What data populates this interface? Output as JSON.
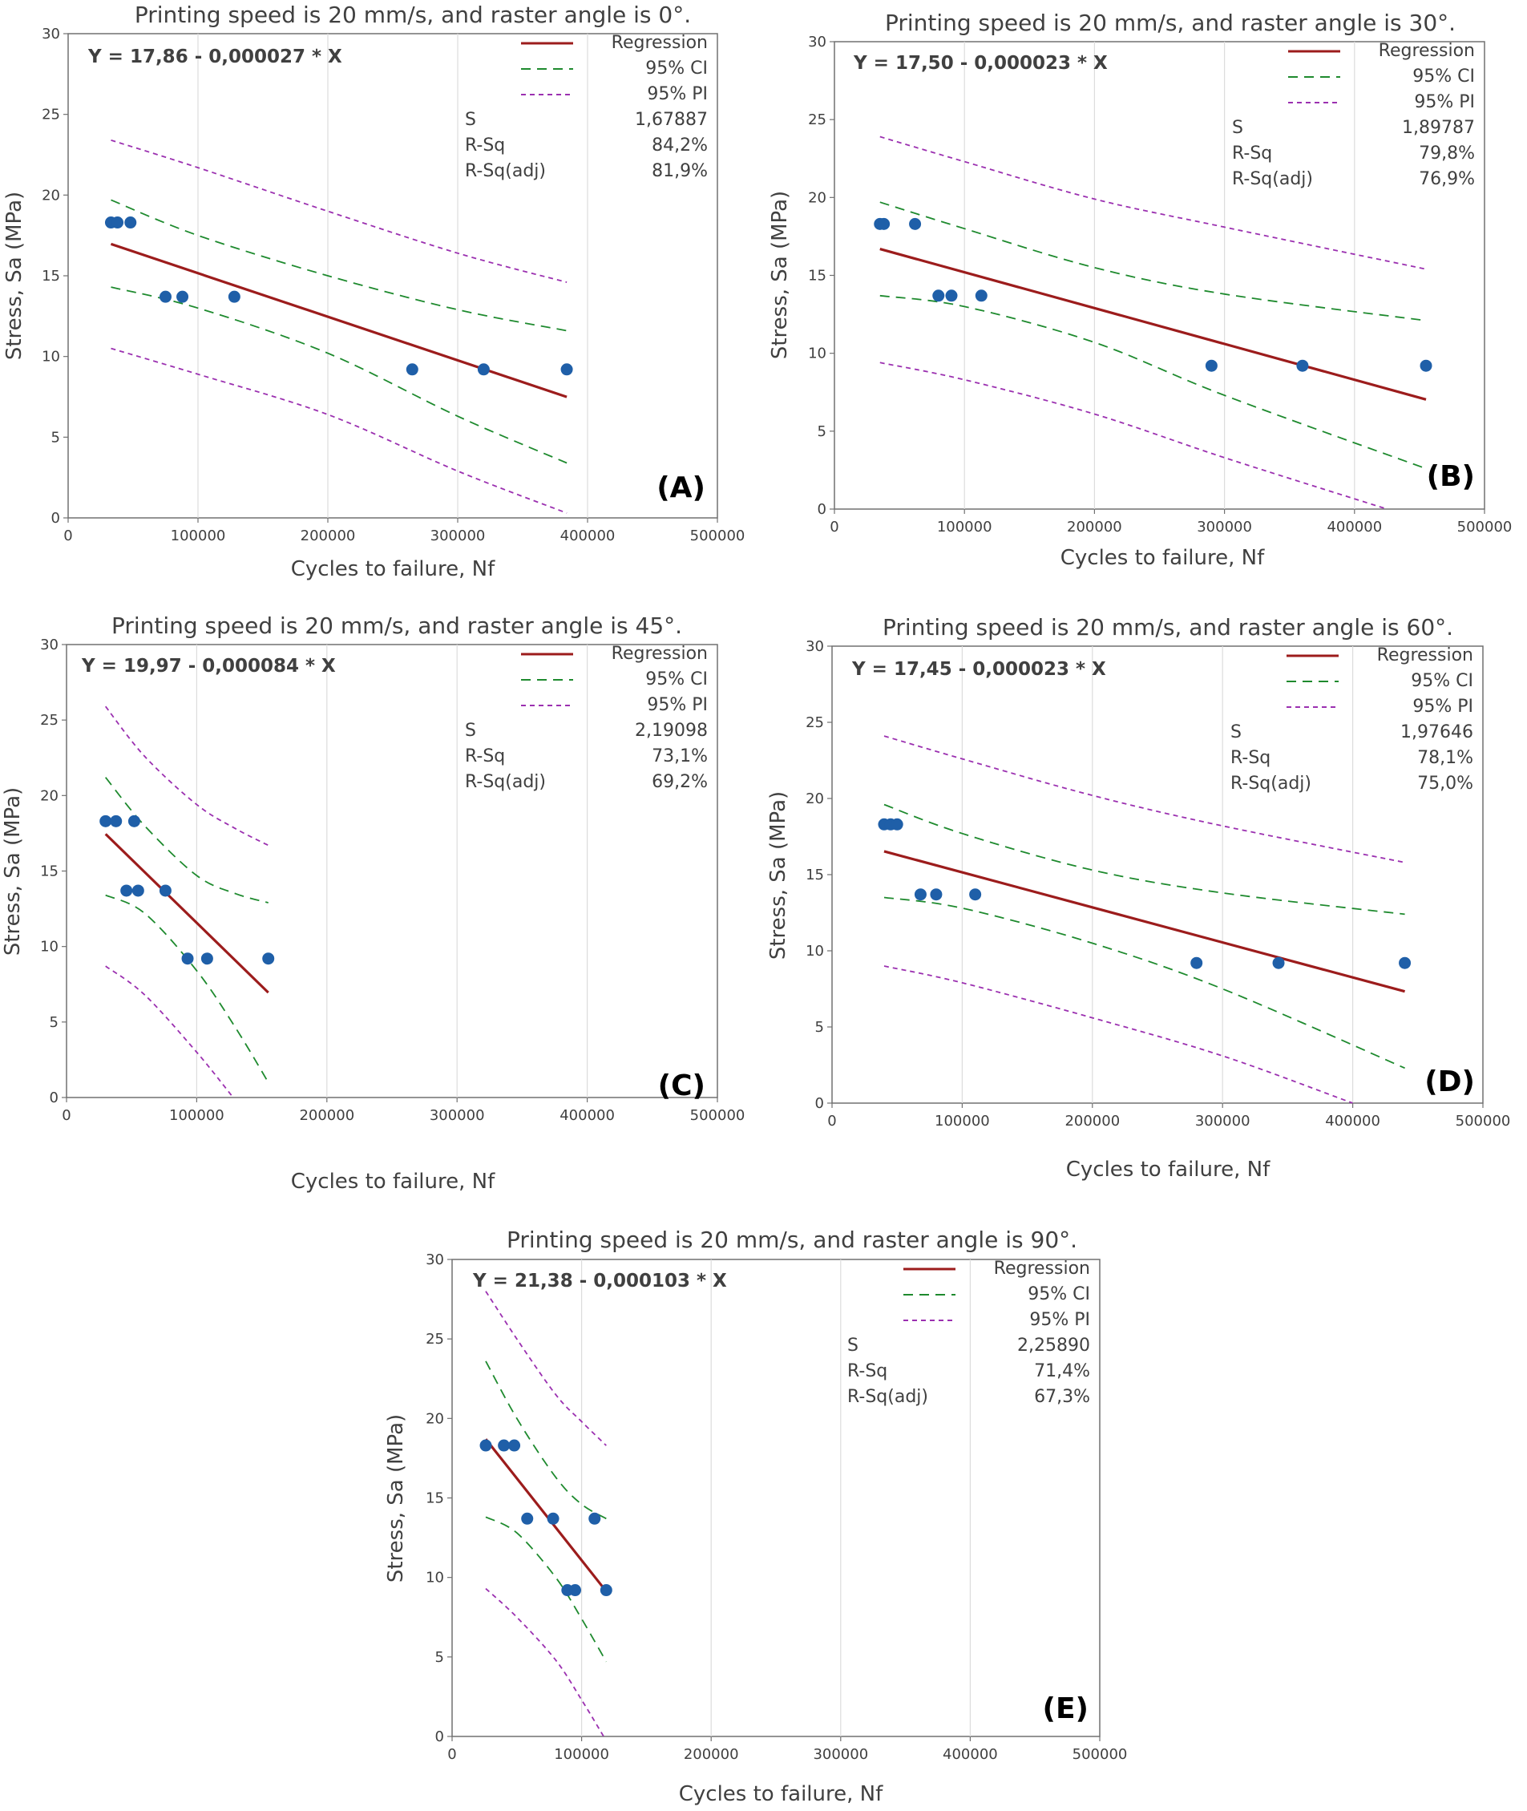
{
  "chart_data": [
    {
      "type": "scatter",
      "title": "Printing speed is 20 mm/s, and raster angle is 0°.",
      "xlabel": "Cycles to failure, Nf",
      "ylabel": "Stress, Sa (MPa)",
      "xlim": [
        0,
        500000
      ],
      "ylim": [
        0,
        30
      ],
      "xticks": [
        0,
        100000,
        200000,
        300000,
        400000,
        500000
      ],
      "yticks": [
        0,
        5,
        10,
        15,
        20,
        25,
        30
      ],
      "equation": "Y = 17,86 - 0,000027 * X",
      "intercept": 17.86,
      "slope": -2.7e-05,
      "x_range": [
        33000,
        384000
      ],
      "points": [
        [
          33000,
          18.3
        ],
        [
          38000,
          18.3
        ],
        [
          48000,
          18.3
        ],
        [
          75000,
          13.7
        ],
        [
          88000,
          13.7
        ],
        [
          128000,
          13.7
        ],
        [
          265000,
          9.2
        ],
        [
          320000,
          9.2
        ],
        [
          384000,
          9.2
        ]
      ],
      "ci_upper": [
        [
          33000,
          19.7
        ],
        [
          100000,
          17.5
        ],
        [
          200000,
          15.0
        ],
        [
          300000,
          12.9
        ],
        [
          384000,
          11.6
        ]
      ],
      "ci_lower": [
        [
          33000,
          14.3
        ],
        [
          100000,
          13.0
        ],
        [
          200000,
          10.2
        ],
        [
          300000,
          6.3
        ],
        [
          384000,
          3.4
        ]
      ],
      "pi_upper": [
        [
          33000,
          23.4
        ],
        [
          100000,
          21.7
        ],
        [
          200000,
          19.0
        ],
        [
          300000,
          16.4
        ],
        [
          384000,
          14.6
        ]
      ],
      "pi_lower": [
        [
          33000,
          10.5
        ],
        [
          100000,
          8.9
        ],
        [
          200000,
          6.4
        ],
        [
          300000,
          2.9
        ],
        [
          384000,
          0.3
        ]
      ],
      "legend": {
        "regression": "Regression",
        "ci": "95% CI",
        "pi": "95% PI"
      },
      "stats": [
        {
          "label": "S",
          "value": "1,67887"
        },
        {
          "label": "R-Sq",
          "value": "84,2%"
        },
        {
          "label": "R-Sq(adj)",
          "value": "81,9%"
        }
      ],
      "panel_label": "(A)"
    },
    {
      "type": "scatter",
      "title": "Printing speed is 20 mm/s, and raster angle is 30°.",
      "xlabel": "Cycles to failure, Nf",
      "ylabel": "Stress, Sa (MPa)",
      "xlim": [
        0,
        500000
      ],
      "ylim": [
        0,
        30
      ],
      "xticks": [
        0,
        100000,
        200000,
        300000,
        400000,
        500000
      ],
      "yticks": [
        0,
        5,
        10,
        15,
        20,
        25,
        30
      ],
      "equation": "Y = 17,50 - 0,000023 * X",
      "intercept": 17.5,
      "slope": -2.3e-05,
      "x_range": [
        35000,
        455000
      ],
      "points": [
        [
          35000,
          18.3
        ],
        [
          38000,
          18.3
        ],
        [
          62000,
          18.3
        ],
        [
          80000,
          13.7
        ],
        [
          90000,
          13.7
        ],
        [
          113000,
          13.7
        ],
        [
          290000,
          9.2
        ],
        [
          360000,
          9.2
        ],
        [
          455000,
          9.2
        ]
      ],
      "ci_upper": [
        [
          35000,
          19.7
        ],
        [
          100000,
          18.0
        ],
        [
          200000,
          15.5
        ],
        [
          300000,
          13.8
        ],
        [
          455000,
          12.1
        ]
      ],
      "ci_lower": [
        [
          35000,
          13.7
        ],
        [
          100000,
          13.0
        ],
        [
          200000,
          10.7
        ],
        [
          300000,
          7.3
        ],
        [
          455000,
          2.6
        ]
      ],
      "pi_upper": [
        [
          35000,
          23.9
        ],
        [
          100000,
          22.3
        ],
        [
          200000,
          19.9
        ],
        [
          300000,
          18.1
        ],
        [
          455000,
          15.4
        ]
      ],
      "pi_lower": [
        [
          35000,
          9.4
        ],
        [
          100000,
          8.3
        ],
        [
          200000,
          6.1
        ],
        [
          300000,
          3.3
        ],
        [
          425000,
          0.0
        ]
      ],
      "legend": {
        "regression": "Regression",
        "ci": "95% CI",
        "pi": "95% PI"
      },
      "stats": [
        {
          "label": "S",
          "value": "1,89787"
        },
        {
          "label": "R-Sq",
          "value": "79,8%"
        },
        {
          "label": "R-Sq(adj)",
          "value": "76,9%"
        }
      ],
      "panel_label": "(B)"
    },
    {
      "type": "scatter",
      "title": "Printing speed is 20 mm/s, and raster angle is 45°.",
      "xlabel": "Cycles to failure, Nf",
      "ylabel": "Stress, Sa (MPa)",
      "xlim": [
        0,
        500000
      ],
      "ylim": [
        0,
        30
      ],
      "xticks": [
        0,
        100000,
        200000,
        300000,
        400000,
        500000
      ],
      "yticks": [
        0,
        5,
        10,
        15,
        20,
        25,
        30
      ],
      "equation": "Y = 19,97 - 0,000084 * X",
      "intercept": 19.97,
      "slope": -8.4e-05,
      "x_range": [
        30000,
        155000
      ],
      "points": [
        [
          30000,
          18.3
        ],
        [
          38000,
          18.3
        ],
        [
          52000,
          18.3
        ],
        [
          46000,
          13.7
        ],
        [
          55000,
          13.7
        ],
        [
          76000,
          13.7
        ],
        [
          93000,
          9.2
        ],
        [
          108000,
          9.2
        ],
        [
          155000,
          9.2
        ]
      ],
      "ci_upper": [
        [
          30000,
          21.2
        ],
        [
          60000,
          18.0
        ],
        [
          100000,
          14.7
        ],
        [
          130000,
          13.5
        ],
        [
          155000,
          12.9
        ]
      ],
      "ci_lower": [
        [
          30000,
          13.4
        ],
        [
          60000,
          12.2
        ],
        [
          100000,
          8.4
        ],
        [
          130000,
          4.6
        ],
        [
          155000,
          1.0
        ]
      ],
      "pi_upper": [
        [
          30000,
          25.9
        ],
        [
          60000,
          22.6
        ],
        [
          100000,
          19.4
        ],
        [
          130000,
          17.8
        ],
        [
          155000,
          16.7
        ]
      ],
      "pi_lower": [
        [
          30000,
          8.7
        ],
        [
          60000,
          6.8
        ],
        [
          100000,
          3.0
        ],
        [
          128000,
          0.0
        ]
      ],
      "legend": {
        "regression": "Regression",
        "ci": "95% CI",
        "pi": "95% PI"
      },
      "stats": [
        {
          "label": "S",
          "value": "2,19098"
        },
        {
          "label": "R-Sq",
          "value": "73,1%"
        },
        {
          "label": "R-Sq(adj)",
          "value": "69,2%"
        }
      ],
      "panel_label": "(C)"
    },
    {
      "type": "scatter",
      "title": "Printing speed is 20 mm/s, and raster angle is 60°.",
      "xlabel": "Cycles to failure, Nf",
      "ylabel": "Stress, Sa (MPa)",
      "xlim": [
        0,
        500000
      ],
      "ylim": [
        0,
        30
      ],
      "xticks": [
        0,
        100000,
        200000,
        300000,
        400000,
        500000
      ],
      "yticks": [
        0,
        5,
        10,
        15,
        20,
        25,
        30
      ],
      "equation": "Y = 17,45 - 0,000023 * X",
      "intercept": 17.45,
      "slope": -2.3e-05,
      "x_range": [
        40000,
        440000
      ],
      "points": [
        [
          40000,
          18.3
        ],
        [
          45000,
          18.3
        ],
        [
          50000,
          18.3
        ],
        [
          68000,
          13.7
        ],
        [
          80000,
          13.7
        ],
        [
          110000,
          13.7
        ],
        [
          280000,
          9.2
        ],
        [
          343000,
          9.2
        ],
        [
          440000,
          9.2
        ]
      ],
      "ci_upper": [
        [
          40000,
          19.6
        ],
        [
          100000,
          17.7
        ],
        [
          200000,
          15.3
        ],
        [
          300000,
          13.8
        ],
        [
          440000,
          12.4
        ]
      ],
      "ci_lower": [
        [
          40000,
          13.5
        ],
        [
          100000,
          12.8
        ],
        [
          200000,
          10.5
        ],
        [
          300000,
          7.5
        ],
        [
          440000,
          2.3
        ]
      ],
      "pi_upper": [
        [
          40000,
          24.1
        ],
        [
          100000,
          22.6
        ],
        [
          200000,
          20.2
        ],
        [
          300000,
          18.2
        ],
        [
          440000,
          15.8
        ]
      ],
      "pi_lower": [
        [
          40000,
          9.0
        ],
        [
          100000,
          7.9
        ],
        [
          200000,
          5.6
        ],
        [
          300000,
          3.1
        ],
        [
          400000,
          0.0
        ]
      ],
      "legend": {
        "regression": "Regression",
        "ci": "95% CI",
        "pi": "95% PI"
      },
      "stats": [
        {
          "label": "S",
          "value": "1,97646"
        },
        {
          "label": "R-Sq",
          "value": "78,1%"
        },
        {
          "label": "R-Sq(adj)",
          "value": "75,0%"
        }
      ],
      "panel_label": "(D)"
    },
    {
      "type": "scatter",
      "title": "Printing speed is 20 mm/s, and raster angle is 90°.",
      "xlabel": "Cycles to failure, Nf",
      "ylabel": "Stress, Sa (MPa)",
      "xlim": [
        0,
        500000
      ],
      "ylim": [
        0,
        30
      ],
      "xticks": [
        0,
        100000,
        200000,
        300000,
        400000,
        500000
      ],
      "yticks": [
        0,
        5,
        10,
        15,
        20,
        25,
        30
      ],
      "equation": "Y = 21,38 - 0,000103 * X",
      "intercept": 21.38,
      "slope": -0.000103,
      "x_range": [
        26000,
        119000
      ],
      "points": [
        [
          26000,
          18.3
        ],
        [
          40000,
          18.3
        ],
        [
          48000,
          18.3
        ],
        [
          58000,
          13.7
        ],
        [
          78000,
          13.7
        ],
        [
          110000,
          13.7
        ],
        [
          89000,
          9.2
        ],
        [
          95000,
          9.2
        ],
        [
          119000,
          9.2
        ]
      ],
      "ci_upper": [
        [
          26000,
          23.6
        ],
        [
          50000,
          20.0
        ],
        [
          80000,
          16.3
        ],
        [
          100000,
          14.6
        ],
        [
          119000,
          13.7
        ]
      ],
      "ci_lower": [
        [
          26000,
          13.8
        ],
        [
          50000,
          12.8
        ],
        [
          80000,
          10.0
        ],
        [
          100000,
          7.4
        ],
        [
          119000,
          4.7
        ]
      ],
      "pi_upper": [
        [
          26000,
          28.0
        ],
        [
          50000,
          25.0
        ],
        [
          80000,
          21.5
        ],
        [
          100000,
          19.8
        ],
        [
          119000,
          18.3
        ]
      ],
      "pi_lower": [
        [
          26000,
          9.3
        ],
        [
          50000,
          7.5
        ],
        [
          80000,
          4.8
        ],
        [
          100000,
          2.3
        ],
        [
          117000,
          0.0
        ]
      ],
      "legend": {
        "regression": "Regression",
        "ci": "95% CI",
        "pi": "95% PI"
      },
      "stats": [
        {
          "label": "S",
          "value": "2,25890"
        },
        {
          "label": "R-Sq",
          "value": "71,4%"
        },
        {
          "label": "R-Sq(adj)",
          "value": "67,3%"
        }
      ],
      "panel_label": "(E)"
    }
  ],
  "colors": {
    "regression": "#9c1c1c",
    "ci": "#1e8a2e",
    "pi": "#9b30b0",
    "point": "#1f5fa8",
    "grid": "#dcdcdc",
    "frame": "#707070"
  }
}
